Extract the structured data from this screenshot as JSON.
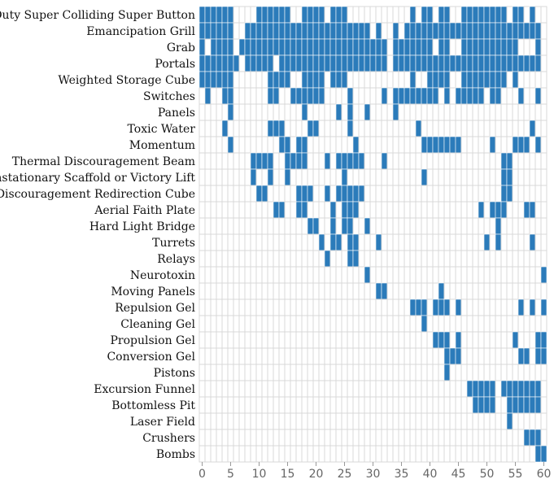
{
  "chart_data": {
    "type": "heatmap",
    "title": "",
    "xlabel": "",
    "ylabel": "",
    "x_range": [
      0,
      60
    ],
    "x_ticks": [
      0,
      5,
      10,
      15,
      20,
      25,
      30,
      35,
      40,
      45,
      50,
      55,
      60
    ],
    "grid": true,
    "colors": {
      "filled": "#2b7bba",
      "empty": "#ffffff",
      "grid": "#d9d9d9"
    },
    "rows": [
      {
        "label": "Duty Super Colliding Super Button",
        "filled": [
          0,
          1,
          2,
          3,
          4,
          5,
          10,
          11,
          12,
          13,
          14,
          15,
          18,
          19,
          20,
          21,
          23,
          24,
          25,
          37,
          39,
          40,
          42,
          43,
          46,
          47,
          48,
          49,
          50,
          51,
          52,
          53,
          55,
          56,
          58
        ]
      },
      {
        "label": "Emancipation Grill",
        "filled": [
          0,
          1,
          2,
          3,
          4,
          5,
          8,
          9,
          10,
          11,
          12,
          13,
          14,
          15,
          16,
          17,
          18,
          19,
          20,
          21,
          22,
          23,
          24,
          25,
          26,
          27,
          28,
          29,
          31,
          34,
          36,
          37,
          38,
          39,
          40,
          41,
          42,
          43,
          44,
          45,
          46,
          47,
          48,
          49,
          50,
          51,
          52,
          53,
          54,
          55,
          56,
          57,
          58,
          59
        ]
      },
      {
        "label": "Grab",
        "filled": [
          0,
          2,
          3,
          4,
          5,
          7,
          8,
          9,
          10,
          11,
          12,
          13,
          14,
          15,
          16,
          17,
          18,
          19,
          20,
          21,
          22,
          23,
          24,
          25,
          26,
          27,
          28,
          29,
          30,
          31,
          32,
          34,
          35,
          36,
          37,
          38,
          39,
          40,
          42,
          43,
          46,
          47,
          48,
          49,
          50,
          51,
          52,
          53,
          54,
          55,
          59
        ]
      },
      {
        "label": "Portals",
        "filled": [
          0,
          1,
          2,
          3,
          4,
          5,
          6,
          8,
          9,
          10,
          11,
          12,
          14,
          15,
          16,
          17,
          18,
          19,
          20,
          21,
          22,
          23,
          24,
          25,
          26,
          27,
          28,
          29,
          30,
          31,
          32,
          34,
          35,
          36,
          37,
          38,
          39,
          40,
          41,
          42,
          43,
          44,
          45,
          46,
          47,
          48,
          49,
          50,
          51,
          52,
          53,
          54,
          55,
          56,
          57,
          58,
          59
        ]
      },
      {
        "label": "Weighted Storage Cube",
        "filled": [
          0,
          1,
          2,
          3,
          4,
          5,
          12,
          13,
          14,
          15,
          18,
          19,
          20,
          21,
          23,
          24,
          25,
          37,
          40,
          41,
          42,
          43,
          46,
          47,
          48,
          49,
          50,
          51,
          52,
          53,
          55
        ]
      },
      {
        "label": "Switches",
        "filled": [
          1,
          4,
          5,
          12,
          13,
          16,
          17,
          18,
          19,
          20,
          21,
          26,
          32,
          34,
          35,
          36,
          37,
          38,
          39,
          40,
          41,
          43,
          45,
          46,
          47,
          48,
          49,
          51,
          52,
          56,
          59
        ]
      },
      {
        "label": "Panels",
        "filled": [
          5,
          18,
          24,
          26,
          29,
          34
        ]
      },
      {
        "label": "Toxic Water",
        "filled": [
          4,
          12,
          13,
          14,
          19,
          20,
          26,
          38,
          58
        ]
      },
      {
        "label": "Momentum",
        "filled": [
          5,
          14,
          15,
          17,
          18,
          27,
          39,
          40,
          41,
          42,
          43,
          44,
          45,
          51,
          55,
          56,
          57,
          59
        ]
      },
      {
        "label": "Thermal Discouragement Beam",
        "filled": [
          9,
          10,
          11,
          12,
          15,
          16,
          17,
          18,
          22,
          24,
          25,
          26,
          27,
          28,
          32,
          53,
          54
        ]
      },
      {
        "label": "Unstationary Scaffold or Victory Lift",
        "filled": [
          9,
          12,
          15,
          25,
          39,
          53,
          54
        ]
      },
      {
        "label": "Discouragement Redirection Cube",
        "filled": [
          10,
          11,
          17,
          18,
          19,
          22,
          24,
          25,
          26,
          27,
          28,
          53,
          54
        ]
      },
      {
        "label": "Aerial Faith Plate",
        "filled": [
          13,
          14,
          17,
          18,
          23,
          25,
          26,
          27,
          49,
          51,
          52,
          53,
          57,
          58
        ]
      },
      {
        "label": "Hard Light Bridge",
        "filled": [
          19,
          20,
          23,
          25,
          26,
          29,
          52
        ]
      },
      {
        "label": "Turrets",
        "filled": [
          21,
          23,
          24,
          26,
          27,
          31,
          50,
          52,
          58
        ]
      },
      {
        "label": "Relays",
        "filled": [
          22,
          26,
          27
        ]
      },
      {
        "label": "Neurotoxin",
        "filled": [
          29,
          60
        ]
      },
      {
        "label": "Moving Panels",
        "filled": [
          31,
          32,
          42
        ]
      },
      {
        "label": "Repulsion Gel",
        "filled": [
          37,
          38,
          39,
          41,
          42,
          43,
          45,
          56,
          58,
          60
        ]
      },
      {
        "label": "Cleaning Gel",
        "filled": [
          39
        ]
      },
      {
        "label": "Propulsion Gel",
        "filled": [
          41,
          42,
          43,
          45,
          55,
          59,
          60
        ]
      },
      {
        "label": "Conversion Gel",
        "filled": [
          43,
          44,
          45,
          56,
          57,
          59,
          60
        ]
      },
      {
        "label": "Pistons",
        "filled": [
          43
        ]
      },
      {
        "label": "Excursion Funnel",
        "filled": [
          47,
          48,
          49,
          50,
          51,
          53,
          54,
          55,
          56,
          57,
          58,
          59
        ]
      },
      {
        "label": "Bottomless Pit",
        "filled": [
          48,
          49,
          50,
          51,
          54,
          55,
          56,
          57,
          58,
          59
        ]
      },
      {
        "label": "Laser Field",
        "filled": [
          54
        ]
      },
      {
        "label": "Crushers",
        "filled": [
          57,
          58,
          59
        ]
      },
      {
        "label": "Bombs",
        "filled": [
          59,
          60
        ]
      }
    ]
  }
}
